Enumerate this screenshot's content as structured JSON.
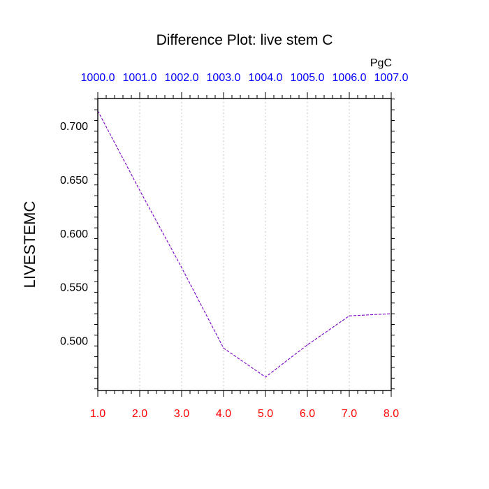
{
  "chart_data": {
    "type": "line",
    "title": "Difference Plot: live stem C",
    "ylabel": "LIVESTEMC",
    "units": "PgC",
    "x": [
      1.0,
      2.0,
      3.0,
      4.0,
      5.0,
      6.0,
      7.0,
      8.0
    ],
    "xlim": [
      1.0,
      8.0
    ],
    "ylim": [
      0.4535,
      0.7255
    ],
    "bottom_ticks": [
      "1.0",
      "2.0",
      "3.0",
      "4.0",
      "5.0",
      "6.0",
      "7.0",
      "8.0"
    ],
    "top_ticks": [
      "1000.0",
      "1001.0",
      "1002.0",
      "1003.0",
      "1004.0",
      "1005.0",
      "1006.0",
      "1007.0"
    ],
    "y_ticks": [
      0.5,
      0.55,
      0.6,
      0.65,
      0.7
    ],
    "y_tick_labels": [
      "0.500",
      "0.550",
      "0.600",
      "0.650",
      "0.700"
    ],
    "grid": "vertical dotted",
    "series": [
      {
        "values": [
          0.714,
          0.64,
          0.568,
          0.493,
          0.466,
          0.496,
          0.523,
          0.525
        ],
        "color": "#7a00c8",
        "style": "dashed"
      }
    ],
    "colors": {
      "bottom_tick_labels": "#ff0000",
      "top_tick_labels": "#0000ff",
      "axis": "#000000",
      "grid": "#c8c8c8"
    }
  }
}
